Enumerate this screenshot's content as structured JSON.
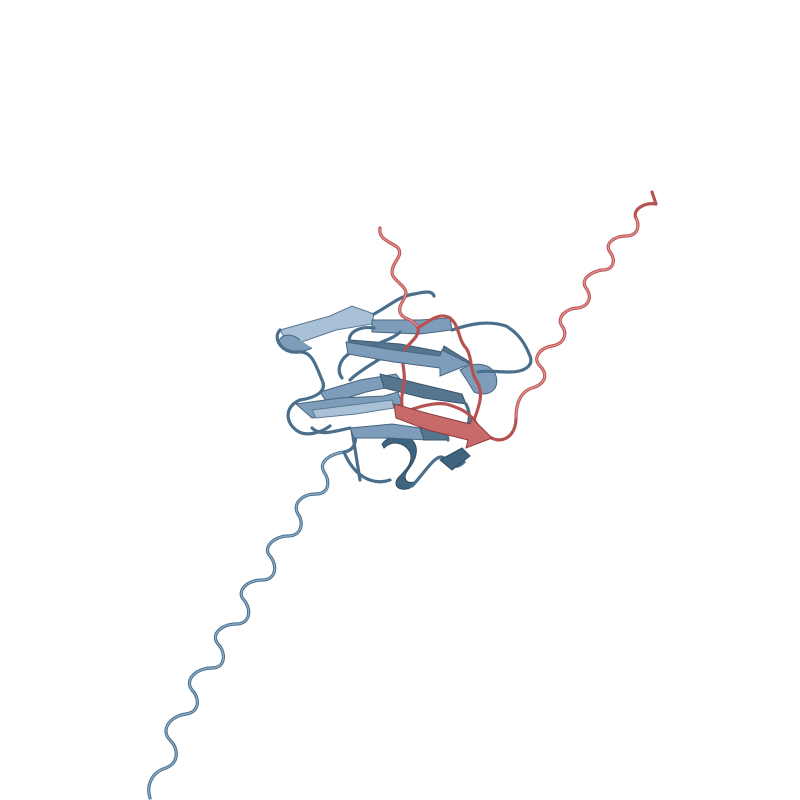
{
  "scene": {
    "background_color": "#ffffff",
    "chain_colors": {
      "chain_a": "#6a8aa8",
      "chain_b": "#c05e5e"
    }
  }
}
